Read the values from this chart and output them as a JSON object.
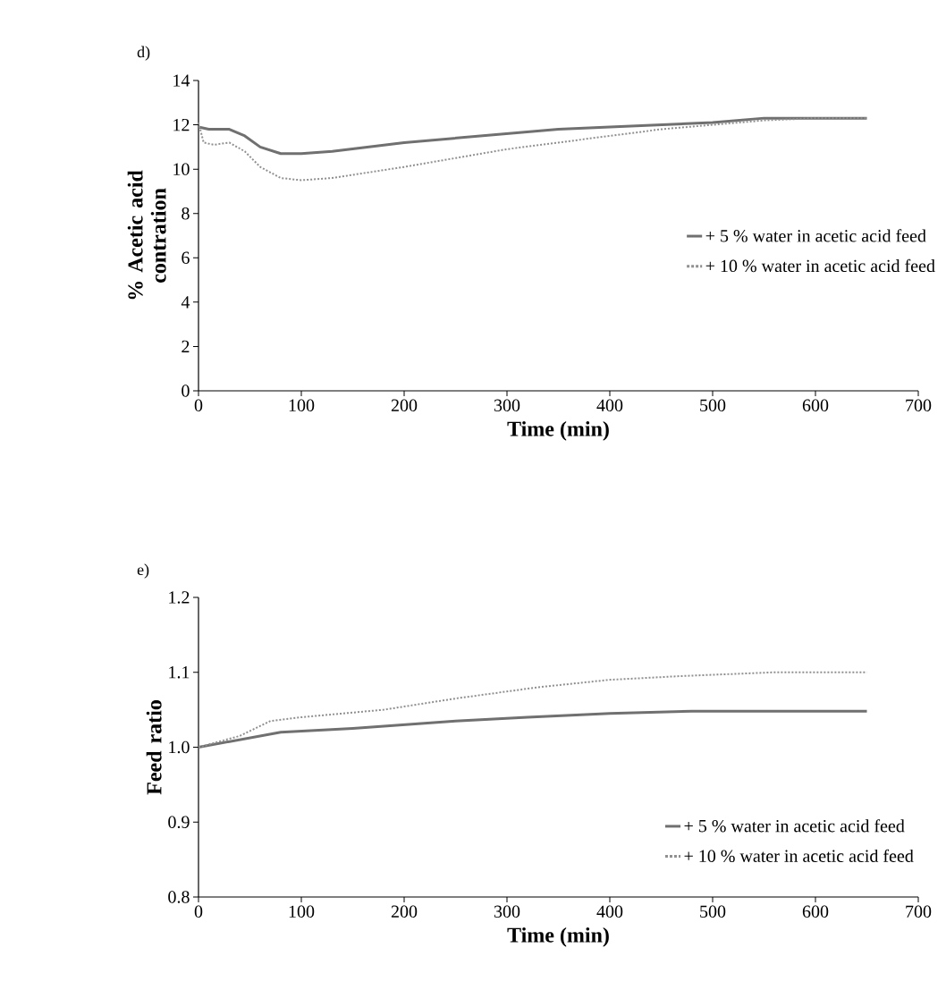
{
  "chart_data": [
    {
      "type": "line",
      "title": "d)",
      "xlabel": "Time (min)",
      "ylabel": "% Acetic acid contration",
      "xlim": [
        0,
        700
      ],
      "xticks": [
        0,
        100,
        200,
        300,
        400,
        500,
        600,
        700
      ],
      "ylim": [
        0,
        14
      ],
      "yticks": [
        0,
        2,
        4,
        6,
        8,
        10,
        12,
        14
      ],
      "grid": false,
      "legend": "right",
      "series": [
        {
          "name": "+ 5 % water in acetic acid feed",
          "color": "#707070",
          "line_style": "solid",
          "x": [
            0,
            10,
            30,
            45,
            60,
            80,
            100,
            130,
            200,
            250,
            300,
            350,
            400,
            450,
            500,
            550,
            600,
            650
          ],
          "values": [
            11.9,
            11.8,
            11.8,
            11.5,
            11.0,
            10.7,
            10.7,
            10.8,
            11.2,
            11.4,
            11.6,
            11.8,
            11.9,
            12.0,
            12.1,
            12.3,
            12.3,
            12.3
          ]
        },
        {
          "name": "+ 10 % water in acetic acid feed",
          "color": "#909090",
          "line_style": "dotted",
          "x": [
            0,
            5,
            15,
            30,
            45,
            60,
            80,
            100,
            130,
            200,
            250,
            300,
            350,
            400,
            450,
            500,
            550,
            600,
            650
          ],
          "values": [
            12.1,
            11.2,
            11.1,
            11.2,
            10.8,
            10.1,
            9.6,
            9.5,
            9.6,
            10.1,
            10.5,
            10.9,
            11.2,
            11.5,
            11.8,
            12.0,
            12.2,
            12.3,
            12.3
          ]
        }
      ]
    },
    {
      "type": "line",
      "title": "e)",
      "xlabel": "Time (min)",
      "ylabel": "Feed ratio",
      "xlim": [
        0,
        700
      ],
      "xticks": [
        0,
        100,
        200,
        300,
        400,
        500,
        600,
        700
      ],
      "ylim": [
        0.8,
        1.2
      ],
      "yticks": [
        {
          "value": 0.8,
          "label": "0.8"
        },
        {
          "value": 0.9,
          "label": "0.9"
        },
        {
          "value": 1.0,
          "label": "1.0"
        },
        {
          "value": 1.1,
          "label": "1.1"
        },
        {
          "value": 1.2,
          "label": "1.2"
        }
      ],
      "grid": false,
      "legend": "bottom right",
      "series": [
        {
          "name": "+ 5 % water in acetic acid feed",
          "color": "#707070",
          "line_style": "solid",
          "x": [
            0,
            40,
            80,
            150,
            250,
            320,
            400,
            480,
            550,
            650
          ],
          "values": [
            1.0,
            1.01,
            1.02,
            1.025,
            1.035,
            1.04,
            1.045,
            1.048,
            1.048,
            1.048
          ]
        },
        {
          "name": "+ 10 % water in acetic acid feed",
          "color": "#909090",
          "line_style": "dotted",
          "x": [
            0,
            40,
            70,
            100,
            180,
            250,
            330,
            400,
            470,
            560,
            650
          ],
          "values": [
            1.0,
            1.015,
            1.035,
            1.04,
            1.05,
            1.065,
            1.08,
            1.09,
            1.095,
            1.1,
            1.1
          ]
        }
      ]
    }
  ]
}
